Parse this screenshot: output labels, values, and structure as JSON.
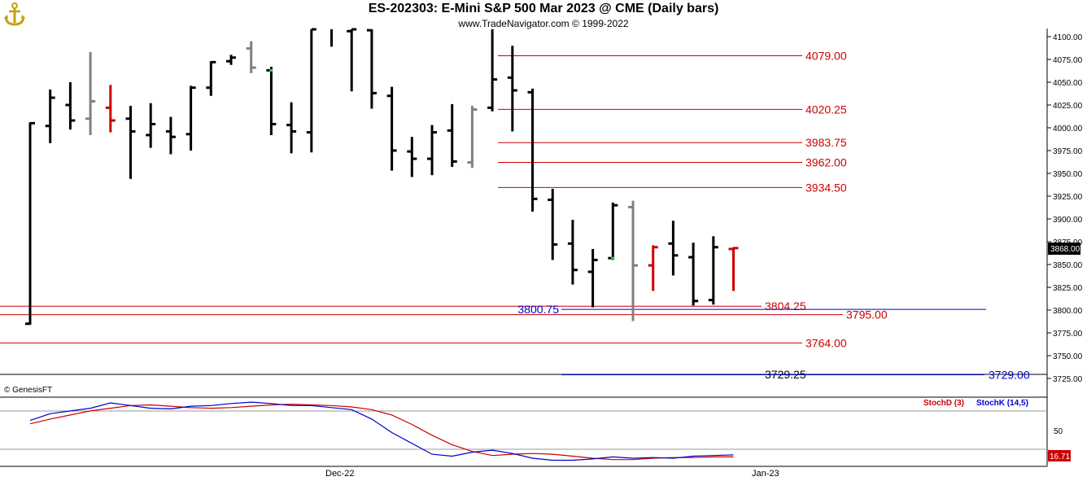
{
  "header": {
    "title": "ES-202303:  E-Mini S&P 500 Mar 2023 @ CME  (Daily bars)",
    "subtitle": "www.TradeNavigator.com © 1999-2022"
  },
  "footer": {
    "copyright": "© GenesisFT"
  },
  "colors": {
    "red": "#cc0000",
    "blue": "#0000cc",
    "black": "#000000",
    "gray": "#808080",
    "green": "#33dd33"
  },
  "chart_data": {
    "type": "bar",
    "title": "ES-202303:  E-Mini S&P 500 Mar 2023 @ CME  (Daily bars)",
    "ylim": [
      3715,
      4105
    ],
    "y_ticks": [
      "4100.00",
      "4075.00",
      "4050.00",
      "4025.00",
      "4000.00",
      "3975.00",
      "3950.00",
      "3925.00",
      "3900.00",
      "3875.00",
      "3850.00",
      "3825.00",
      "3800.00",
      "3775.00",
      "3750.00",
      "3725.00"
    ],
    "x_labels": [
      "Dec-22",
      "Jan-23"
    ],
    "last_price": "3868.00",
    "bars": [
      {
        "h": 4006,
        "l": 3784,
        "o": 3785,
        "c": 4005,
        "col": "black"
      },
      {
        "h": 4042,
        "l": 3983,
        "o": 4002,
        "c": 4033,
        "col": "black"
      },
      {
        "h": 4050,
        "l": 3998,
        "o": 4025,
        "c": 4008,
        "col": "black"
      },
      {
        "h": 4083,
        "l": 3992,
        "o": 4010,
        "c": 4029,
        "col": "gray"
      },
      {
        "h": 4047,
        "l": 3995,
        "o": 4022,
        "c": 4008,
        "col": "red"
      },
      {
        "h": 4024,
        "l": 3944,
        "o": 4010,
        "c": 3996,
        "col": "black"
      },
      {
        "h": 4027,
        "l": 3978,
        "o": 3992,
        "c": 4004,
        "col": "black"
      },
      {
        "h": 4012,
        "l": 3971,
        "o": 3996,
        "c": 3990,
        "col": "black"
      },
      {
        "h": 4046,
        "l": 3975,
        "o": 3993,
        "c": 4044,
        "col": "black"
      },
      {
        "h": 4073,
        "l": 4035,
        "o": 4044,
        "c": 4072,
        "col": "black"
      },
      {
        "h": 4080,
        "l": 4069,
        "o": 4073,
        "c": 4077,
        "col": "black"
      },
      {
        "h": 4095,
        "l": 4060,
        "o": 4087,
        "c": 4066,
        "col": "gray"
      },
      {
        "h": 4067,
        "l": 3992,
        "o": 4063,
        "c": 4004,
        "col": "black"
      },
      {
        "h": 4028,
        "l": 3972,
        "o": 4003,
        "c": 3996,
        "col": "black"
      },
      {
        "h": 4110,
        "l": 3973,
        "o": 3995,
        "c": 4108,
        "col": "black"
      },
      {
        "h": 4120,
        "l": 4089,
        "o": 4115,
        "c": 4110,
        "col": "black"
      },
      {
        "h": 4115,
        "l": 4040,
        "o": 4106,
        "c": 4108,
        "col": "black"
      },
      {
        "h": 4110,
        "l": 4021,
        "o": 4107,
        "c": 4038,
        "col": "black"
      },
      {
        "h": 4045,
        "l": 3953,
        "o": 4035,
        "c": 3975,
        "col": "black"
      },
      {
        "h": 3990,
        "l": 3946,
        "o": 3974,
        "c": 3966,
        "col": "black"
      },
      {
        "h": 4003,
        "l": 3948,
        "o": 3966,
        "c": 3995,
        "col": "black"
      },
      {
        "h": 4026,
        "l": 3957,
        "o": 3997,
        "c": 3963,
        "col": "black"
      },
      {
        "h": 4024,
        "l": 3956,
        "o": 3962,
        "c": 4020,
        "col": "gray"
      },
      {
        "h": 4108,
        "l": 4018,
        "o": 4022,
        "c": 4053,
        "col": "black"
      },
      {
        "h": 4090,
        "l": 3996,
        "o": 4055,
        "c": 4041,
        "col": "black"
      },
      {
        "h": 4043,
        "l": 3908,
        "o": 4039,
        "c": 3922,
        "col": "black"
      },
      {
        "h": 3933,
        "l": 3855,
        "o": 3921,
        "c": 3872,
        "col": "black"
      },
      {
        "h": 3899,
        "l": 3828,
        "o": 3873,
        "c": 3844,
        "col": "black"
      },
      {
        "h": 3867,
        "l": 3803,
        "o": 3842,
        "c": 3855,
        "col": "black"
      },
      {
        "h": 3918,
        "l": 3855,
        "o": 3857,
        "c": 3915,
        "col": "black"
      },
      {
        "h": 3920,
        "l": 3788,
        "o": 3913,
        "c": 3849,
        "col": "gray"
      },
      {
        "h": 3871,
        "l": 3821,
        "o": 3849,
        "c": 3869,
        "col": "red"
      },
      {
        "h": 3898,
        "l": 3838,
        "o": 3873,
        "c": 3860,
        "col": "black"
      },
      {
        "h": 3874,
        "l": 3805,
        "o": 3858,
        "c": 3810,
        "col": "black"
      },
      {
        "h": 3881,
        "l": 3806,
        "o": 3811,
        "c": 3869,
        "col": "black"
      },
      {
        "h": 3869,
        "l": 3821,
        "o": 3867,
        "c": 3868,
        "col": "red"
      }
    ],
    "levels": [
      {
        "value": 4079.0,
        "label": "4079.00",
        "color": "red"
      },
      {
        "value": 4020.25,
        "label": "4020.25",
        "color": "red"
      },
      {
        "value": 3983.75,
        "label": "3983.75",
        "color": "red"
      },
      {
        "value": 3962.0,
        "label": "3962.00",
        "color": "red"
      },
      {
        "value": 3934.5,
        "label": "3934.50",
        "color": "red"
      },
      {
        "value": 3804.25,
        "label": "3804.25",
        "color": "red"
      },
      {
        "value": 3800.75,
        "label": "3800.75",
        "color": "blue"
      },
      {
        "value": 3795.0,
        "label": "3795.00",
        "color": "red"
      },
      {
        "value": 3764.0,
        "label": "3764.00",
        "color": "red"
      },
      {
        "value": 3729.25,
        "label": "3729.25",
        "color": "black"
      },
      {
        "value": 3729.0,
        "label": "3729.00",
        "color": "blue"
      }
    ],
    "stochastic": {
      "ylim": [
        0,
        100
      ],
      "y_ticks": [
        "50"
      ],
      "last_value": "16.71",
      "series": [
        {
          "name": "StochD (3)",
          "color": "red",
          "values": [
            63,
            70,
            76,
            82,
            86,
            90,
            91,
            89,
            87,
            86,
            87,
            89,
            91,
            92,
            91,
            90,
            88,
            84,
            76,
            62,
            46,
            32,
            22,
            16,
            18,
            19,
            18,
            15,
            12,
            10,
            10,
            12,
            13,
            13,
            14,
            14
          ]
        },
        {
          "name": "StochK (14,5)",
          "color": "blue",
          "values": [
            68,
            78,
            82,
            86,
            94,
            90,
            86,
            85,
            89,
            90,
            93,
            95,
            93,
            90,
            90,
            87,
            84,
            70,
            50,
            34,
            18,
            15,
            21,
            24,
            19,
            12,
            9,
            9,
            11,
            14,
            12,
            13,
            12,
            15,
            16,
            17
          ]
        }
      ]
    }
  }
}
